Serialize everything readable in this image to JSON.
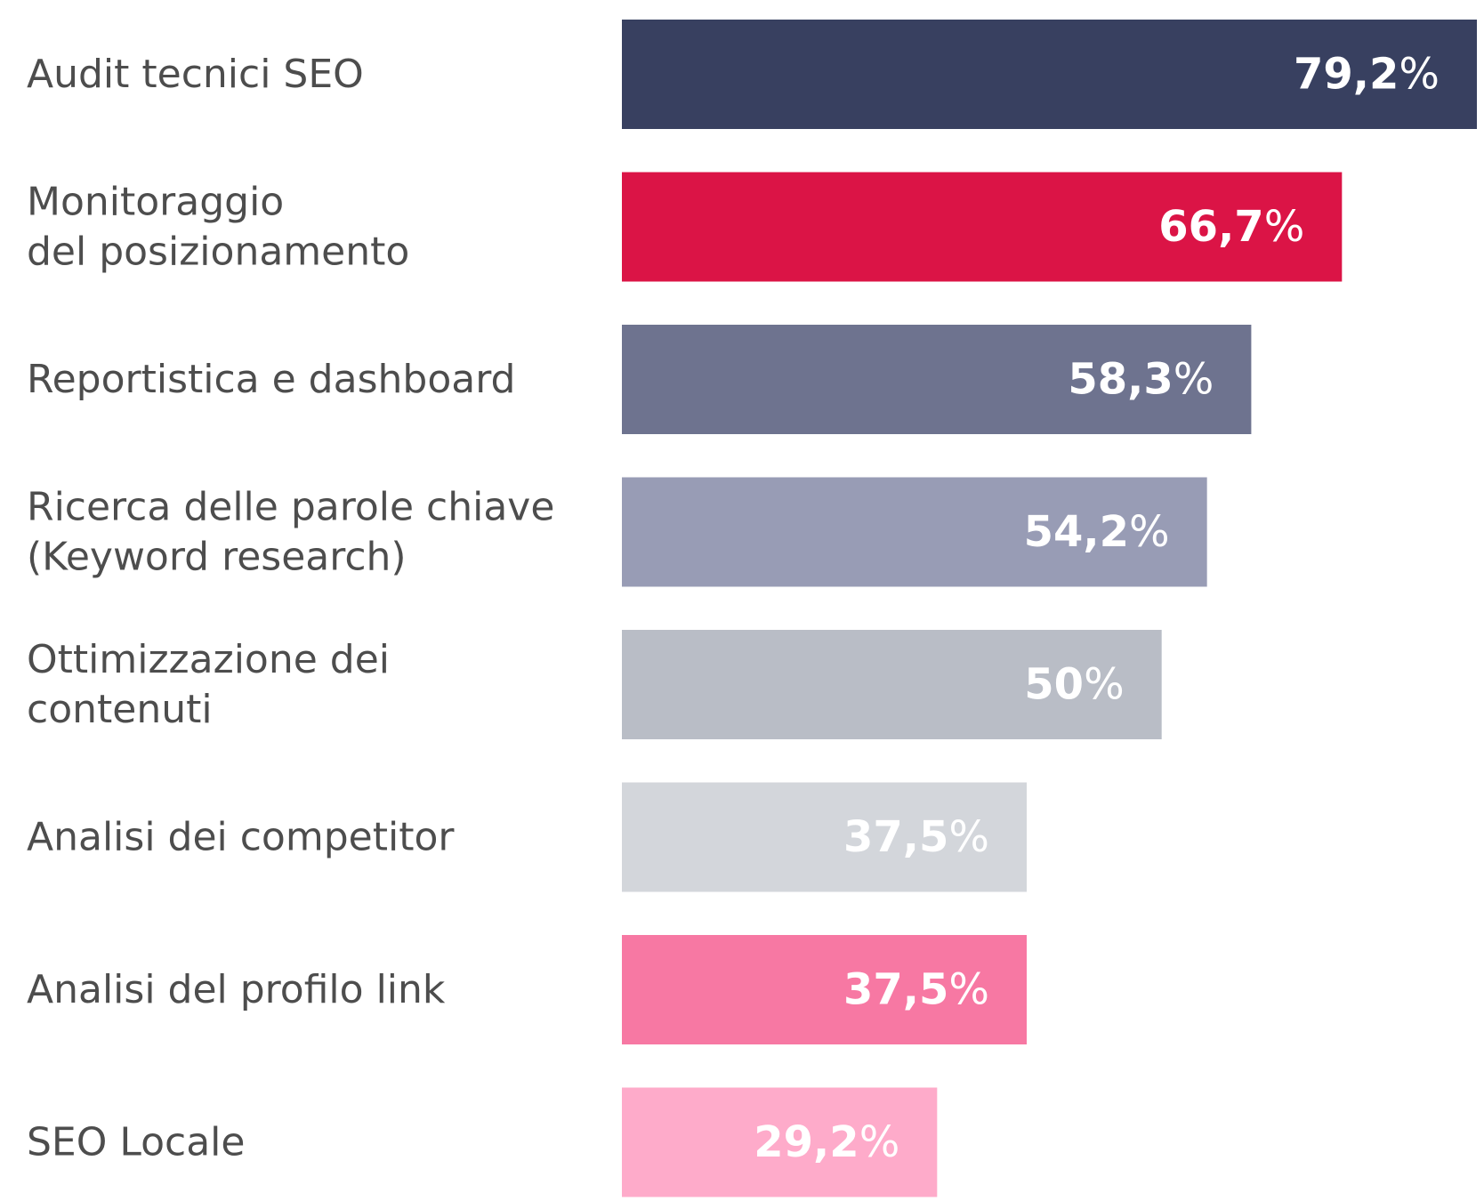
{
  "chart_data": {
    "type": "bar",
    "orientation": "horizontal",
    "title": "",
    "xlabel": "",
    "ylabel": "",
    "grid": false,
    "legend": "none",
    "xlim": [
      0,
      79.2
    ],
    "categories": [
      [
        "Audit tecnici SEO"
      ],
      [
        "Monitoraggio",
        "del posizionamento"
      ],
      [
        "Reportistica e dashboard"
      ],
      [
        "Ricerca delle parole chiave",
        "(Keyword research)"
      ],
      [
        "Ottimizzazione dei",
        "contenuti"
      ],
      [
        "Analisi dei competitor"
      ],
      [
        "Analisi del profilo link"
      ],
      [
        "SEO Locale"
      ]
    ],
    "values": [
      79.2,
      66.7,
      58.3,
      54.2,
      50,
      37.5,
      37.5,
      29.2
    ],
    "value_labels": [
      "79,2",
      "66,7",
      "58,3",
      "54,2",
      "50",
      "37,5",
      "37,5",
      "29,2"
    ],
    "value_suffix": "%",
    "colors": [
      "#384060",
      "#db1446",
      "#6e738f",
      "#989cb5",
      "#b9bdc6",
      "#d3d6db",
      "#f778a3",
      "#feabca"
    ]
  }
}
